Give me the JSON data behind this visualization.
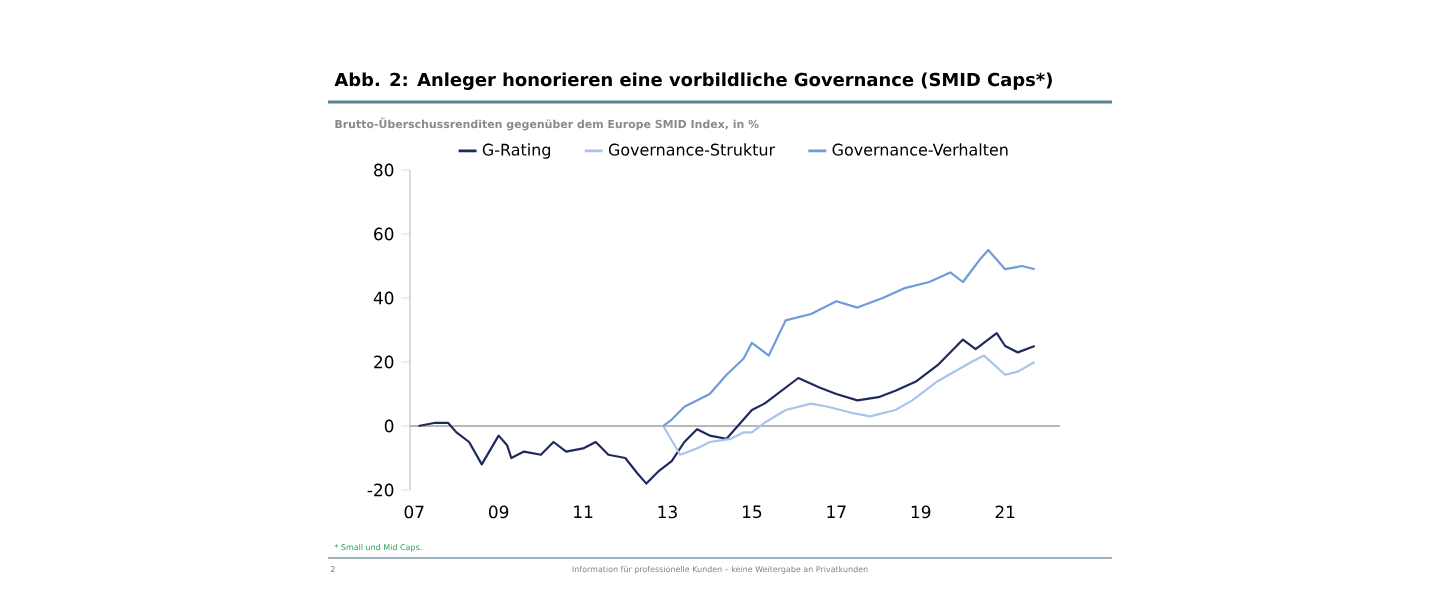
{
  "chart_data": {
    "type": "line",
    "title": "Abb. 2: Anleger honorieren eine vorbildliche Governance (SMID Caps*)",
    "subtitle": "Brutto-Überschussrenditen gegenüber dem Europe SMID Index, in %",
    "annotations": [
      "* Small und Mid Caps.",
      "Information für professionelle Kunden – keine Weitergabe an Privatkunden",
      "2"
    ],
    "series": [
      {
        "name": "G-Rating",
        "color": "#1f2a5c",
        "x": [
          2007.1,
          2007.5,
          2007.8,
          2008.0,
          2008.3,
          2008.6,
          2009.0,
          2009.2,
          2009.3,
          2009.6,
          2010.0,
          2010.3,
          2010.6,
          2011.0,
          2011.3,
          2011.6,
          2012.0,
          2012.3,
          2012.5,
          2012.8,
          2013.1,
          2013.4,
          2013.7,
          2014.0,
          2014.4,
          2014.8,
          2015.0,
          2015.3,
          2015.7,
          2016.1,
          2016.6,
          2017.0,
          2017.5,
          2018.0,
          2018.4,
          2018.9,
          2019.4,
          2020.0,
          2020.3,
          2020.8,
          2021.0,
          2021.3,
          2021.7
        ],
        "values": [
          0,
          1,
          1,
          -2,
          -5,
          -12,
          -3,
          -6,
          -10,
          -8,
          -9,
          -5,
          -8,
          -7,
          -5,
          -9,
          -10,
          -15,
          -18,
          -14,
          -11,
          -5,
          -1,
          -3,
          -4,
          2,
          5,
          7,
          11,
          15,
          12,
          10,
          8,
          9,
          11,
          14,
          19,
          27,
          24,
          29,
          25,
          23,
          25
        ]
      },
      {
        "name": "Governance-Struktur",
        "color": "#a9c4e8",
        "x": [
          2012.9,
          2013.3,
          2013.7,
          2014.0,
          2014.5,
          2014.8,
          2015.0,
          2015.3,
          2015.8,
          2016.4,
          2016.8,
          2017.4,
          2017.8,
          2018.4,
          2018.8,
          2019.4,
          2020.2,
          2020.5,
          2021.0,
          2021.3,
          2021.7
        ],
        "values": [
          0,
          -9,
          -7,
          -5,
          -4,
          -2,
          -2,
          1,
          5,
          7,
          6,
          4,
          3,
          5,
          8,
          14,
          20,
          22,
          16,
          17,
          20
        ]
      },
      {
        "name": "Governance-Verhalten",
        "color": "#6f9bd8",
        "x": [
          2012.9,
          2013.1,
          2013.4,
          2014.0,
          2014.4,
          2014.8,
          2015.0,
          2015.4,
          2015.8,
          2016.4,
          2017.0,
          2017.5,
          2018.1,
          2018.6,
          2019.2,
          2019.7,
          2020.0,
          2020.4,
          2020.6,
          2021.0,
          2021.4,
          2021.7
        ],
        "values": [
          0,
          2,
          6,
          10,
          16,
          21,
          26,
          22,
          33,
          35,
          39,
          37,
          40,
          43,
          45,
          48,
          45,
          52,
          55,
          49,
          50,
          49
        ]
      }
    ],
    "xlim": [
      2006.9,
      2022.3
    ],
    "xticks": [
      {
        "value": 2007,
        "label": "07"
      },
      {
        "value": 2009,
        "label": "09"
      },
      {
        "value": 2011,
        "label": "11"
      },
      {
        "value": 2013,
        "label": "13"
      },
      {
        "value": 2015,
        "label": "15"
      },
      {
        "value": 2017,
        "label": "17"
      },
      {
        "value": 2019,
        "label": "19"
      },
      {
        "value": 2021,
        "label": "21"
      }
    ],
    "ylim": [
      -20,
      80
    ],
    "yticks": [
      -20,
      0,
      20,
      40,
      60,
      80
    ],
    "ref_lines": [
      {
        "axis": "y",
        "value": 0,
        "color": "#a0a0a0"
      }
    ],
    "legend": "top",
    "grid": false,
    "marker": "none",
    "line_style": "solid"
  }
}
